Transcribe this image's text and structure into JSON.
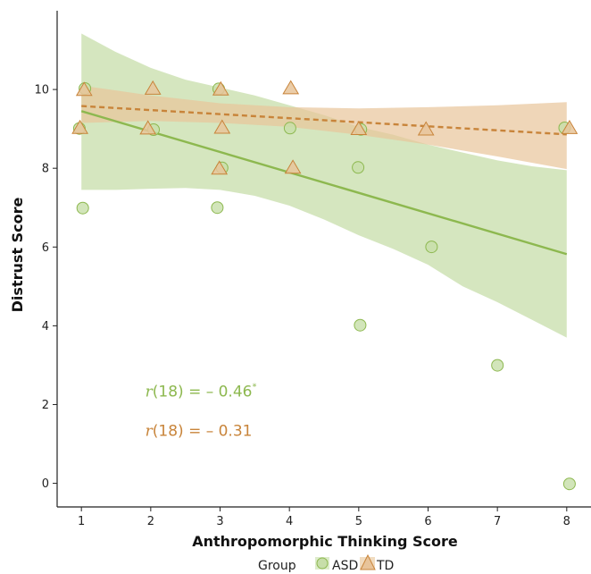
{
  "chart_data": {
    "type": "scatter",
    "xlabel": "Anthropomorphic Thinking Score",
    "ylabel": "Distrust Score",
    "xlim": [
      0.65,
      8.35
    ],
    "ylim": [
      -0.6,
      12.0
    ],
    "x_ticks": [
      1,
      2,
      3,
      4,
      5,
      6,
      7,
      8
    ],
    "y_ticks": [
      0,
      2,
      4,
      6,
      8,
      10
    ],
    "grid": false,
    "legend": {
      "title": "Group",
      "position": "bottom",
      "items": [
        {
          "label": "ASD",
          "shape": "circle",
          "color": "#8db84f"
        },
        {
          "label": "TD",
          "shape": "triangle",
          "color": "#c8843a"
        }
      ]
    },
    "series": [
      {
        "name": "ASD",
        "marker": "circle",
        "color": "#8db84f",
        "fill": "#c7dea9",
        "points": [
          {
            "x": 1,
            "y": 10
          },
          {
            "x": 1,
            "y": 9
          },
          {
            "x": 1,
            "y": 7
          },
          {
            "x": 2,
            "y": 9
          },
          {
            "x": 3,
            "y": 10
          },
          {
            "x": 3,
            "y": 8
          },
          {
            "x": 3,
            "y": 7
          },
          {
            "x": 4,
            "y": 9
          },
          {
            "x": 5,
            "y": 9
          },
          {
            "x": 5,
            "y": 8
          },
          {
            "x": 5,
            "y": 4
          },
          {
            "x": 6,
            "y": 6
          },
          {
            "x": 7,
            "y": 3
          },
          {
            "x": 8,
            "y": 9
          },
          {
            "x": 8,
            "y": 0
          }
        ],
        "fit": {
          "x": [
            1,
            8
          ],
          "y": [
            9.45,
            5.82
          ],
          "style": "solid"
        },
        "band": {
          "x": [
            1,
            1.5,
            2,
            2.5,
            3,
            3.5,
            4,
            4.5,
            5,
            5.5,
            6,
            6.5,
            7,
            7.5,
            8
          ],
          "upper": [
            11.42,
            10.95,
            10.55,
            10.25,
            10.05,
            9.85,
            9.6,
            9.35,
            9.05,
            8.85,
            8.6,
            8.4,
            8.2,
            8.05,
            7.95
          ],
          "lower": [
            7.45,
            7.45,
            7.48,
            7.5,
            7.45,
            7.3,
            7.05,
            6.7,
            6.3,
            5.95,
            5.55,
            5.0,
            4.6,
            4.15,
            3.7
          ]
        }
      },
      {
        "name": "TD",
        "marker": "triangle",
        "color": "#c8843a",
        "fill": "#e8c49a",
        "points": [
          {
            "x": 1,
            "y": 10
          },
          {
            "x": 1,
            "y": 9
          },
          {
            "x": 2,
            "y": 10
          },
          {
            "x": 2,
            "y": 9
          },
          {
            "x": 3,
            "y": 10
          },
          {
            "x": 3,
            "y": 9
          },
          {
            "x": 3,
            "y": 8
          },
          {
            "x": 4,
            "y": 10
          },
          {
            "x": 4,
            "y": 8
          },
          {
            "x": 5,
            "y": 9
          },
          {
            "x": 6,
            "y": 9
          },
          {
            "x": 8,
            "y": 9
          }
        ],
        "fit": {
          "x": [
            1,
            8
          ],
          "y": [
            9.58,
            8.86
          ],
          "style": "dashed"
        },
        "band": {
          "x": [
            1,
            2,
            3,
            4,
            5,
            6,
            7,
            8
          ],
          "upper": [
            10.1,
            9.85,
            9.65,
            9.55,
            9.52,
            9.55,
            9.6,
            9.68
          ],
          "lower": [
            9.15,
            9.2,
            9.15,
            9.05,
            8.85,
            8.6,
            8.3,
            7.98
          ]
        }
      }
    ],
    "annotations": [
      {
        "r_symbol": "r",
        "paren_text": "(18)",
        "value_text": " = – 0.46",
        "superscript": "*",
        "color": "#8db84f",
        "x": 1.92,
        "y": 2.2
      },
      {
        "r_symbol": "r",
        "paren_text": "(18)",
        "value_text": " = – 0.31",
        "superscript": "",
        "color": "#c8843a",
        "x": 1.92,
        "y": 1.2
      }
    ]
  }
}
